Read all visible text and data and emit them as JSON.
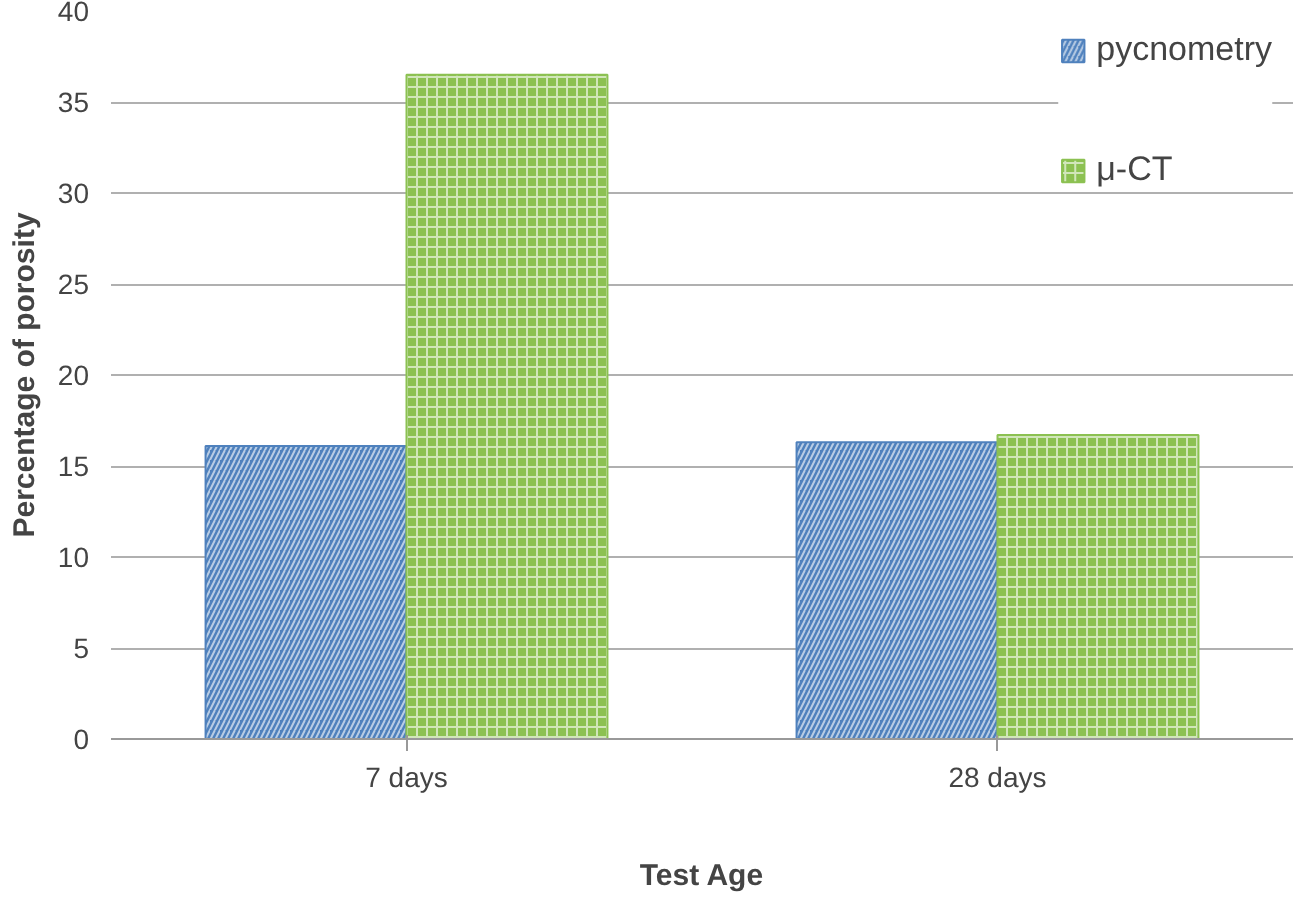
{
  "chart_data": {
    "type": "bar",
    "xlabel": "Test Age",
    "ylabel": "Percentage of porosity",
    "categories": [
      "7 days",
      "28 days"
    ],
    "series": [
      {
        "name": "pycnometry",
        "color": "#4f81bd",
        "values": [
          16.1,
          16.3
        ]
      },
      {
        "name": "μ-CT",
        "color": "#8cc152",
        "values": [
          36.5,
          16.7
        ]
      }
    ],
    "ylim": [
      0,
      40
    ],
    "yticks": [
      0,
      5,
      10,
      15,
      20,
      25,
      30,
      35,
      40
    ],
    "grid": "y",
    "legend": "top right"
  }
}
